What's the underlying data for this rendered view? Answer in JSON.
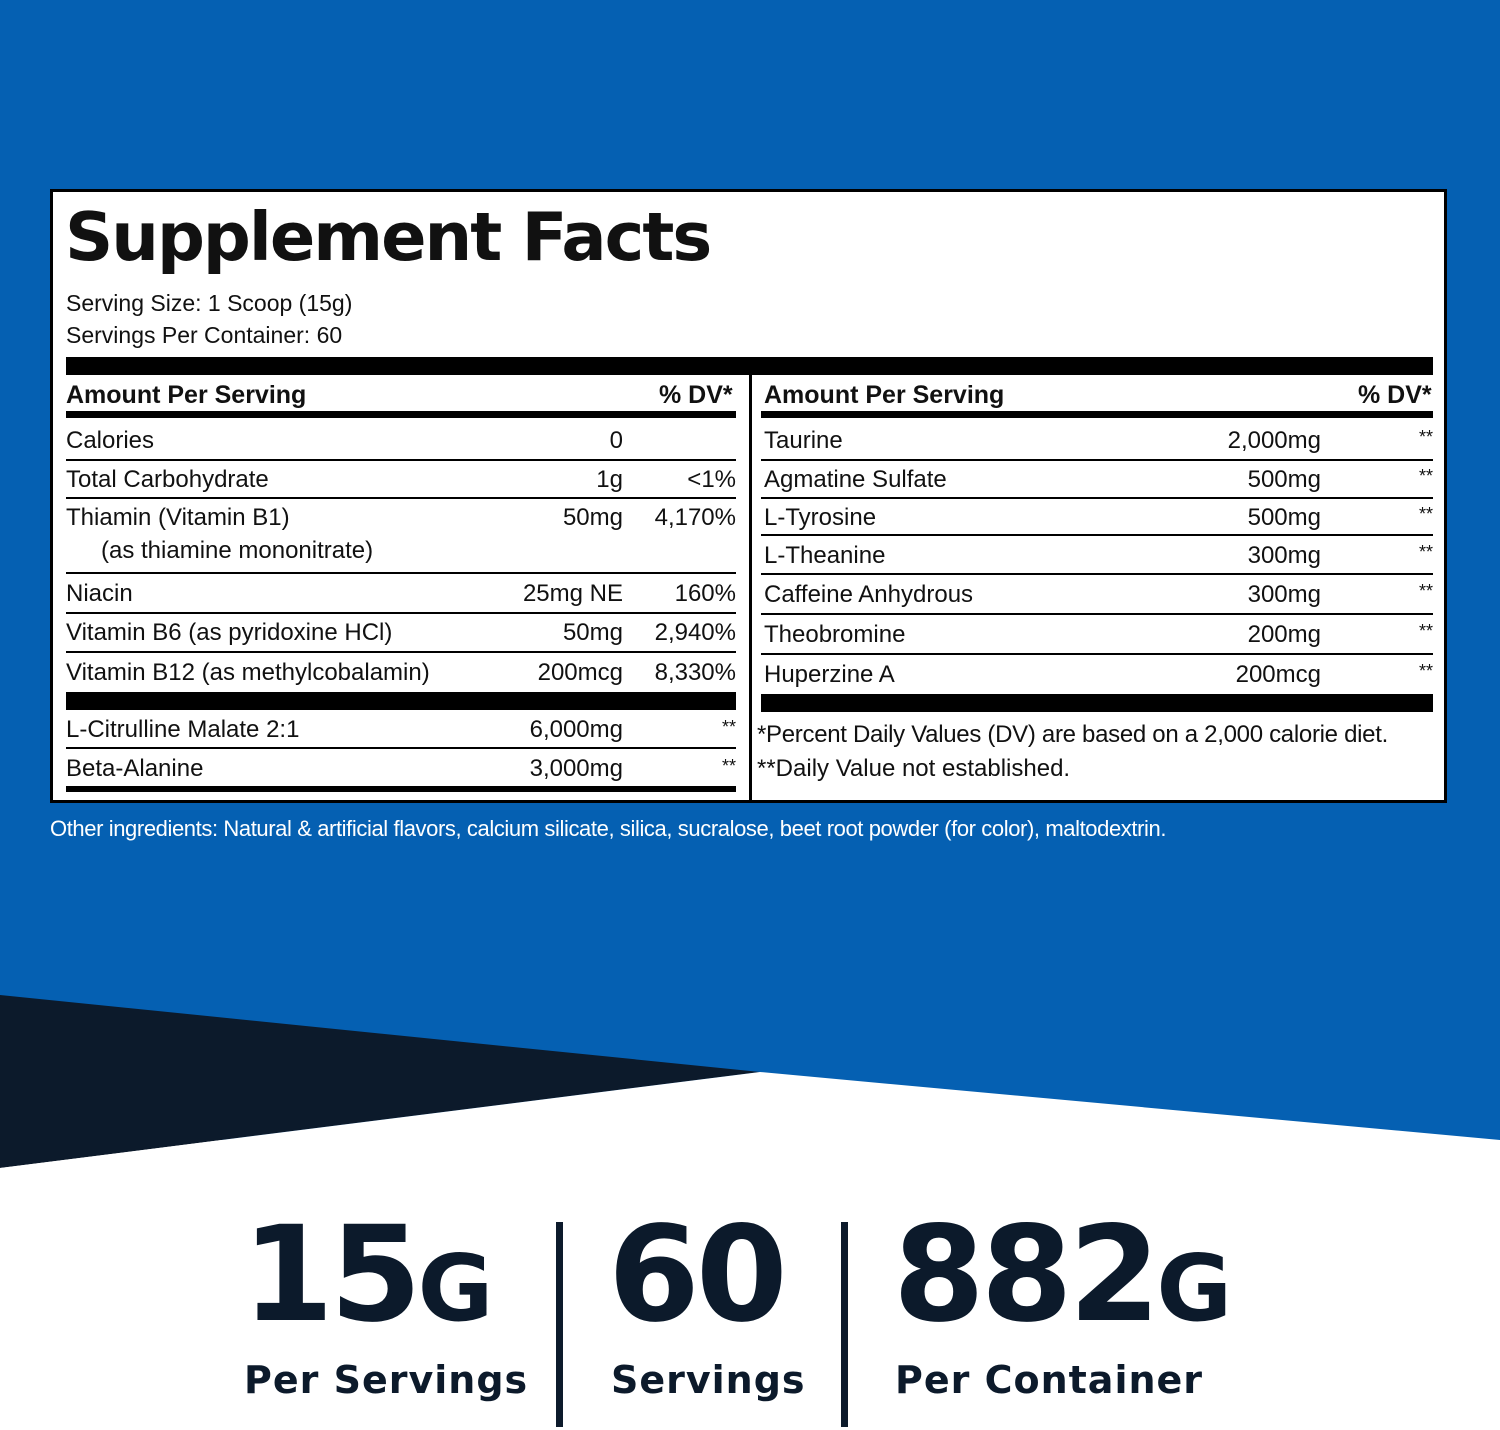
{
  "colors": {
    "blue": "#0560b2",
    "navy": "#0c1a2b",
    "white": "#ffffff",
    "black": "#000000"
  },
  "panel": {
    "title": "Supplement Facts",
    "serving_size": "Serving Size: 1 Scoop (15g)",
    "servings_per_container": "Servings Per Container: 60",
    "left": {
      "header_amount": "Amount Per Serving",
      "header_dv": "% DV*",
      "rows": [
        {
          "name": "Calories",
          "amount": "0",
          "dv": ""
        },
        {
          "name": "Total Carbohydrate",
          "amount": "1g",
          "dv": "<1%"
        },
        {
          "name": "Thiamin (Vitamin B1)",
          "sub": "(as thiamine mononitrate)",
          "amount": "50mg",
          "dv": "4,170%"
        },
        {
          "name": "Niacin",
          "amount": "25mg NE",
          "dv": "160%"
        },
        {
          "name": "Vitamin B6 (as pyridoxine HCl)",
          "amount": "50mg",
          "dv": "2,940%"
        },
        {
          "name": "Vitamin B12 (as methylcobalamin)",
          "amount": "200mcg",
          "dv": "8,330%"
        },
        {
          "name": "L-Citrulline Malate 2:1",
          "amount": "6,000mg",
          "dv": "**"
        },
        {
          "name": "Beta-Alanine",
          "amount": "3,000mg",
          "dv": "**"
        }
      ]
    },
    "right": {
      "header_amount": "Amount Per Serving",
      "header_dv": "% DV*",
      "rows": [
        {
          "name": "Taurine",
          "amount": "2,000mg",
          "dv": "**"
        },
        {
          "name": "Agmatine Sulfate",
          "amount": "500mg",
          "dv": "**"
        },
        {
          "name": "L-Tyrosine",
          "amount": "500mg",
          "dv": "**"
        },
        {
          "name": "L-Theanine",
          "amount": "300mg",
          "dv": "**"
        },
        {
          "name": "Caffeine Anhydrous",
          "amount": "300mg",
          "dv": "**"
        },
        {
          "name": "Theobromine",
          "amount": "200mg",
          "dv": "**"
        },
        {
          "name": "Huperzine A",
          "amount": "200mcg",
          "dv": "**"
        }
      ],
      "footnote1": "*Percent Daily Values (DV) are based on a 2,000 calorie diet.",
      "footnote2": "**Daily Value not established."
    }
  },
  "other_ingredients": "Other ingredients: Natural & artificial flavors, calcium silicate, silica, sucralose, beet root powder (for color), maltodextrin.",
  "stats": [
    {
      "number": "15",
      "unit": "G",
      "label": "Per Servings"
    },
    {
      "number": "60",
      "unit": "",
      "label": "Servings"
    },
    {
      "number": "882",
      "unit": "G",
      "label": "Per Container"
    }
  ]
}
